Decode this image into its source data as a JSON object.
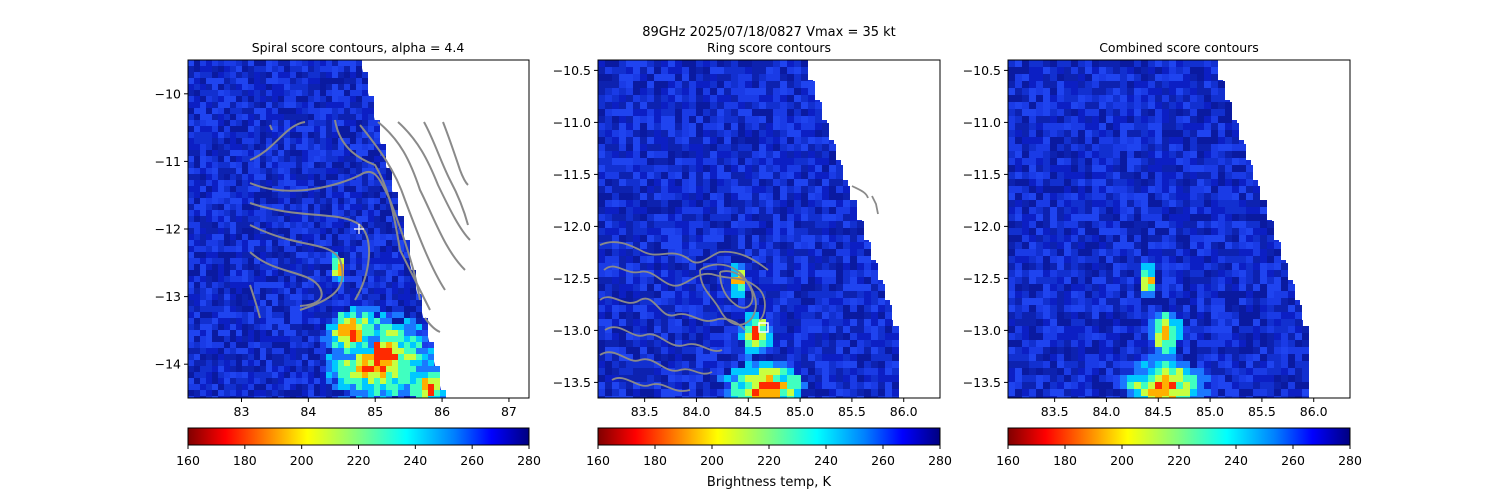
{
  "suptitle": {
    "line1": "89GHz  2025/07/18/0827    Vmax = 35 kt"
  },
  "colorbar_label": "Brightness temp, K",
  "colormap": {
    "name": "jet_r",
    "stops": [
      "#800000",
      "#ff0000",
      "#ff8000",
      "#ffff00",
      "#80ff80",
      "#00ffff",
      "#0080ff",
      "#0000ff",
      "#000080"
    ]
  },
  "chart_data": [
    {
      "type": "heatmap",
      "title": "Spiral score contours, alpha =  4.4",
      "xlim": [
        82.2,
        87.3
      ],
      "ylim": [
        -14.5,
        -9.5
      ],
      "xticks": [
        "83",
        "84",
        "85",
        "86",
        "87"
      ],
      "yticks": [
        "−10",
        "−11",
        "−12",
        "−13",
        "−14"
      ],
      "colorbar": {
        "ticks": [
          "160",
          "180",
          "200",
          "220",
          "240",
          "260",
          "280"
        ],
        "range": [
          160,
          280
        ]
      },
      "marker": {
        "symbol": "plus",
        "x": 84.7,
        "y": -12.0
      },
      "contours": "gray spiral score contours"
    },
    {
      "type": "heatmap",
      "title": "Ring score contours",
      "xlim": [
        83.05,
        86.35
      ],
      "ylim": [
        -13.65,
        -10.4
      ],
      "xticks": [
        "83.5",
        "84.0",
        "84.5",
        "85.0",
        "85.5",
        "86.0"
      ],
      "yticks": [
        "−10.5",
        "−11.0",
        "−11.5",
        "−12.0",
        "−12.5",
        "−13.0",
        "−13.5"
      ],
      "colorbar": {
        "ticks": [
          "160",
          "180",
          "200",
          "220",
          "240",
          "260",
          "280"
        ],
        "range": [
          160,
          280
        ]
      },
      "marker": {
        "symbol": "square",
        "x": 84.65,
        "y": -12.98
      },
      "contours": "gray ring score contours"
    },
    {
      "type": "heatmap",
      "title": "Combined score contours",
      "xlim": [
        83.05,
        86.35
      ],
      "ylim": [
        -13.65,
        -10.4
      ],
      "xticks": [
        "83.5",
        "84.0",
        "84.5",
        "85.0",
        "85.5",
        "86.0"
      ],
      "yticks": [
        "−10.5",
        "−11.0",
        "−11.5",
        "−12.0",
        "−12.5",
        "−13.0",
        "−13.5"
      ],
      "colorbar": {
        "ticks": [
          "160",
          "180",
          "200",
          "220",
          "240",
          "260",
          "280"
        ],
        "range": [
          160,
          280
        ]
      }
    }
  ]
}
